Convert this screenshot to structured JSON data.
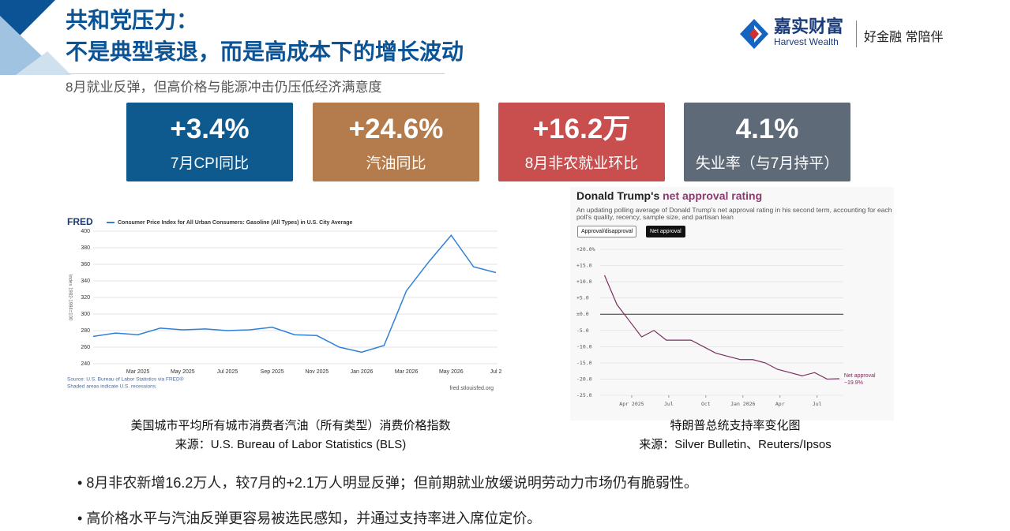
{
  "header": {
    "title_line1": "共和党压力：",
    "title_line2": "不是典型衰退，而是高成本下的增长波动",
    "subtitle": "8月就业反弹，但高价格与能源冲击仍压低经济满意度"
  },
  "logo": {
    "cn": "嘉实财富",
    "en": "Harvest Wealth",
    "slogan": "好金融 常陪伴"
  },
  "kpis": [
    {
      "value": "+3.4%",
      "label": "7月CPI同比"
    },
    {
      "value": "+24.6%",
      "label": "汽油同比"
    },
    {
      "value": "+16.2万",
      "label": "8月非农就业环比"
    },
    {
      "value": "4.1%",
      "label": "失业率（与7月持平）"
    }
  ],
  "chart_data": [
    {
      "type": "line",
      "brand": "FRED",
      "title": "Consumer Price Index for All Urban Consumers: Gasoline (All Types) in U.S. City Average",
      "ylabel": "Index 1982-1984=100",
      "categories": [
        null,
        null,
        "Mar 2025",
        null,
        "May 2025",
        null,
        "Jul 2025",
        null,
        "Sep 2025",
        null,
        "Nov 2025",
        null,
        "Jan 2026",
        null,
        "Mar 2026",
        null,
        "May 2026",
        null,
        "Jul 2"
      ],
      "series": [
        {
          "name": "Consumer Price Index for All Urban Consumers: Gasoline (All Types) in U.S. City Average",
          "color": "#2f80d8",
          "values": [
            273,
            277,
            275,
            283,
            281,
            282,
            280,
            281,
            284,
            275,
            274,
            260,
            254,
            262,
            328,
            363,
            395,
            357,
            350
          ]
        }
      ],
      "ylim": [
        240,
        400
      ],
      "yticks": [
        240,
        260,
        280,
        300,
        320,
        340,
        360,
        380,
        400
      ],
      "grid": true,
      "source": "Source: U.S. Bureau of Labor Statistics via FRED®",
      "note": "Shaded areas indicate U.S. recessions.",
      "url": "fred.stlouisfed.org"
    },
    {
      "type": "line",
      "title": "Donald Trump's",
      "title_highlight": "net approval rating",
      "subtitle": "An updating polling average of Donald Trump's net approval rating in his second term, accounting for each poll's quality, recency, sample size, and partisan lean",
      "buttons": [
        "Approval/disapproval",
        "Net approval"
      ],
      "x": [
        "2025-01",
        "2025-02",
        "2025-03",
        "2025-04",
        "2025-05",
        "2025-06",
        "2025-07",
        "2025-08",
        "2025-09",
        "2025-10",
        "2025-11",
        "2025-12",
        "2026-01",
        "2026-02",
        "2026-03",
        "2026-04",
        "2026-05",
        "2026-06",
        "2026-07",
        "2026-08"
      ],
      "series": [
        {
          "name": "Net approval",
          "color": "#7b2d5e",
          "values": [
            12,
            3,
            -2,
            -7,
            -5,
            -8,
            -8,
            -8,
            -10,
            -12,
            -13,
            -14,
            -14,
            -15,
            -17,
            -18,
            -19,
            -18,
            -20,
            -19.9
          ],
          "value_labels": [
            null,
            null,
            null,
            null,
            null,
            null,
            null,
            null,
            null,
            null,
            null,
            null,
            null,
            null,
            null,
            null,
            null,
            null,
            null,
            "−19.9%"
          ]
        }
      ],
      "ylim": [
        -25,
        20
      ],
      "yticks": [
        {
          "value": -25,
          "label": "-25.0"
        },
        {
          "value": -20,
          "label": "-20.0"
        },
        {
          "value": -15,
          "label": "-15.0"
        },
        {
          "value": -10,
          "label": "-10.0"
        },
        {
          "value": -5,
          "label": "-5.0"
        },
        {
          "value": 0,
          "label": "±0.0"
        },
        {
          "value": 5,
          "label": "+5.0"
        },
        {
          "value": 10,
          "label": "+10.0"
        },
        {
          "value": 15,
          "label": "+15.0"
        },
        {
          "value": 20,
          "label": "+20.0%"
        }
      ],
      "xticks": [
        {
          "value": "2025-04",
          "label": "Apr 2025"
        },
        {
          "value": "2025-07",
          "label": "Jul"
        },
        {
          "value": "2025-10",
          "label": "Oct"
        },
        {
          "value": "2026-01",
          "label": "Jan 2026"
        },
        {
          "value": "2026-04",
          "label": "Apr"
        },
        {
          "value": "2026-07",
          "label": "Jul"
        }
      ],
      "grid": true
    }
  ],
  "captions": [
    {
      "line1": "美国城市平均所有城市消费者汽油（所有类型）消费价格指数",
      "line2": "来源：U.S. Bureau of Labor Statistics (BLS)"
    },
    {
      "line1": "特朗普总统支持率变化图",
      "line2": "来源：Silver Bulletin、Reuters/Ipsos"
    }
  ],
  "bullets": [
    "8月非农新增16.2万人，较7月的+2.1万人明显反弹；但前期就业放缓说明劳动力市场仍有脆弱性。",
    "高价格水平与汽油反弹更容易被选民感知，并通过支持率进入席位定价。"
  ]
}
